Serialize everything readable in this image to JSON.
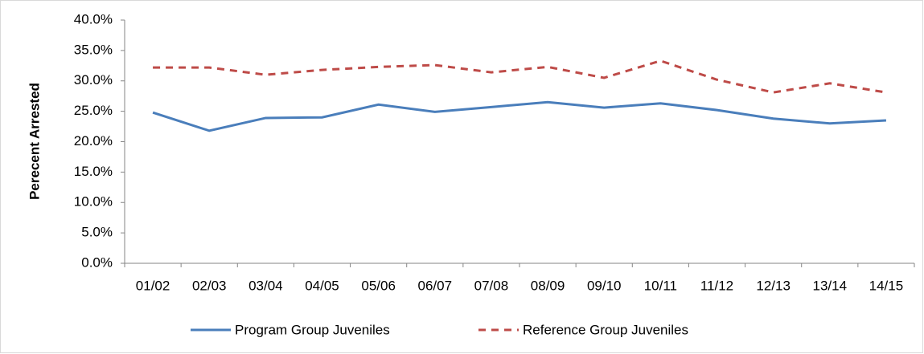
{
  "chart_data": {
    "type": "line",
    "y_label": "Perecent  Arrested",
    "categories": [
      "01/02",
      "02/03",
      "03/04",
      "04/05",
      "05/06",
      "06/07",
      "07/08",
      "08/09",
      "09/10",
      "10/11",
      "11/12",
      "12/13",
      "13/14",
      "14/15"
    ],
    "series": [
      {
        "name": "Program Group Juveniles",
        "color": "#4a7ebb",
        "dash": false,
        "values": [
          24.8,
          21.8,
          23.9,
          24.0,
          26.1,
          24.9,
          25.7,
          26.5,
          25.6,
          26.3,
          25.2,
          23.8,
          23.0,
          23.5
        ]
      },
      {
        "name": "Reference Group Juveniles",
        "color": "#be4b48",
        "dash": true,
        "values": [
          32.2,
          32.2,
          31.0,
          31.8,
          32.3,
          32.6,
          31.4,
          32.3,
          30.5,
          33.3,
          30.2,
          28.1,
          29.6,
          28.1
        ]
      }
    ],
    "ylim": [
      0,
      40
    ],
    "yticks": [
      {
        "value": 0,
        "label": "0.0%"
      },
      {
        "value": 5,
        "label": "5.0%"
      },
      {
        "value": 10,
        "label": "10.0%"
      },
      {
        "value": 15,
        "label": "15.0%"
      },
      {
        "value": 20,
        "label": "20.0%"
      },
      {
        "value": 25,
        "label": "25.0%"
      },
      {
        "value": 30,
        "label": "30.0%"
      },
      {
        "value": 35,
        "label": "35.0%"
      },
      {
        "value": 40,
        "label": "40.0%"
      }
    ],
    "grid": false,
    "legend": "bottom"
  }
}
